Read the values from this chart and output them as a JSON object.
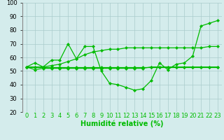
{
  "xlabel": "Humidité relative (%)",
  "background_color": "#d4ecec",
  "grid_color": "#aacccc",
  "line_color": "#00bb00",
  "x": [
    0,
    1,
    2,
    3,
    4,
    5,
    6,
    7,
    8,
    9,
    10,
    11,
    12,
    13,
    14,
    15,
    16,
    17,
    18,
    19,
    20,
    21,
    22,
    23
  ],
  "lines": [
    [
      53,
      56,
      53,
      58,
      58,
      70,
      59,
      68,
      68,
      50,
      41,
      40,
      38,
      36,
      37,
      43,
      56,
      51,
      55,
      56,
      61,
      83,
      85,
      87
    ],
    [
      53,
      53,
      53,
      54,
      55,
      57,
      59,
      62,
      64,
      65,
      66,
      66,
      67,
      67,
      67,
      67,
      67,
      67,
      67,
      67,
      67,
      67,
      68,
      68
    ],
    [
      53,
      51,
      52,
      52,
      52,
      52,
      52,
      52,
      52,
      52,
      52,
      52,
      52,
      52,
      52,
      53,
      53,
      53,
      53,
      53,
      53,
      53,
      53,
      53
    ],
    [
      53,
      53,
      53,
      53,
      53,
      53,
      53,
      53,
      53,
      53,
      53,
      53,
      53,
      53,
      53,
      53,
      53,
      53,
      53,
      53,
      53,
      53,
      53,
      53
    ]
  ],
  "ylim": [
    20,
    100
  ],
  "yticks": [
    20,
    30,
    40,
    50,
    60,
    70,
    80,
    90,
    100
  ],
  "xtick_labels": [
    "0",
    "1",
    "2",
    "3",
    "4",
    "5",
    "6",
    "7",
    "8",
    "9",
    "10",
    "11",
    "12",
    "13",
    "14",
    "15",
    "16",
    "17",
    "18",
    "19",
    "20",
    "21",
    "22",
    "23"
  ],
  "xlabel_fontsize": 7,
  "ylabel_fontsize": 7,
  "tick_fontsize": 6,
  "line_width": 0.9,
  "marker_size": 2.2,
  "figsize": [
    3.2,
    2.0
  ],
  "dpi": 100
}
